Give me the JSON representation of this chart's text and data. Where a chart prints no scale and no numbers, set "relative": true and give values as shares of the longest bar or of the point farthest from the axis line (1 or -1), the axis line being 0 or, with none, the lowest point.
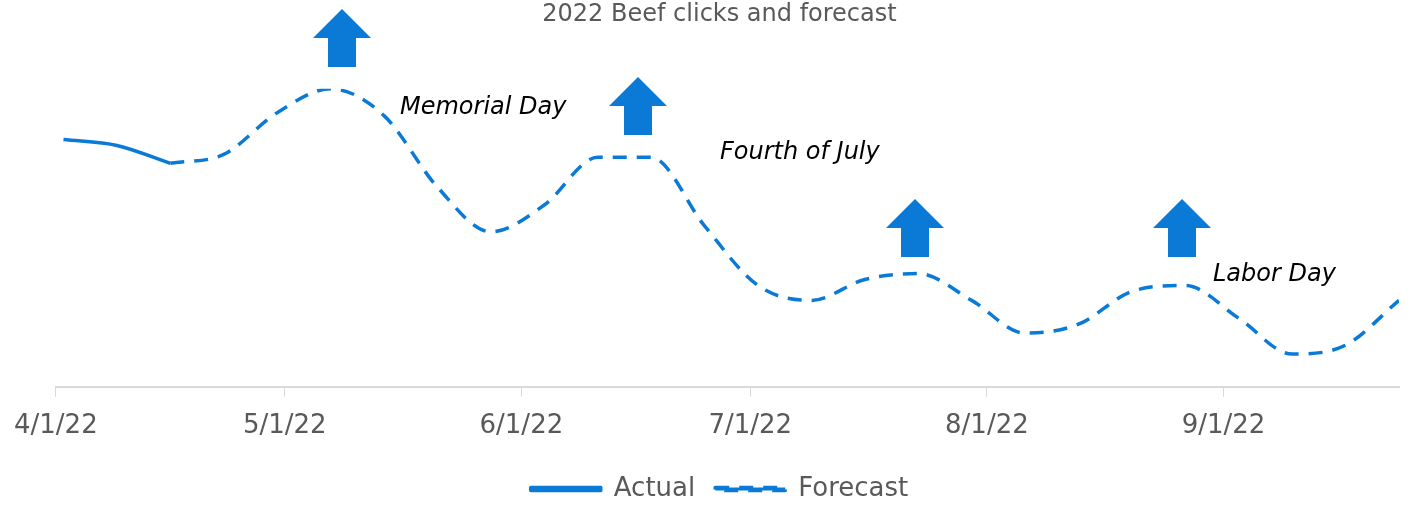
{
  "chart_data": {
    "type": "line",
    "title": "2022 Beef clicks and forecast",
    "relative": true,
    "x": [
      "2022-04-02",
      "2022-04-09",
      "2022-04-16",
      "2022-04-23",
      "2022-04-30",
      "2022-05-07",
      "2022-05-14",
      "2022-05-21",
      "2022-05-28",
      "2022-06-04",
      "2022-06-11",
      "2022-06-18",
      "2022-06-25",
      "2022-07-02",
      "2022-07-09",
      "2022-07-16",
      "2022-07-23",
      "2022-07-30",
      "2022-08-06",
      "2022-08-13",
      "2022-08-20",
      "2022-08-27",
      "2022-09-03",
      "2022-09-10",
      "2022-09-17",
      "2022-09-24"
    ],
    "series": [
      {
        "name": "Actual",
        "color": "#0a7ad6",
        "line_style": "solid",
        "values": [
          0.83,
          0.81,
          0.75,
          null,
          null,
          null,
          null,
          null,
          null,
          null,
          null,
          null,
          null,
          null,
          null,
          null,
          null,
          null,
          null,
          null,
          null,
          null,
          null,
          null,
          null,
          null
        ]
      },
      {
        "name": "Forecast",
        "color": "#0a7ad6",
        "line_style": "dashed",
        "values": [
          null,
          null,
          0.75,
          0.78,
          0.92,
          1.0,
          0.91,
          0.67,
          0.52,
          0.61,
          0.77,
          0.77,
          0.54,
          0.34,
          0.29,
          0.36,
          0.38,
          0.29,
          0.18,
          0.21,
          0.32,
          0.34,
          0.23,
          0.11,
          0.14,
          0.29
        ]
      }
    ],
    "xlim": [
      "2022-04-01",
      "2022-09-24"
    ],
    "xticks": [
      {
        "value": "2022-04-01",
        "label": "4/1/22"
      },
      {
        "value": "2022-05-01",
        "label": "5/1/22"
      },
      {
        "value": "2022-06-01",
        "label": "6/1/22"
      },
      {
        "value": "2022-07-01",
        "label": "7/1/22"
      },
      {
        "value": "2022-08-01",
        "label": "8/1/22"
      },
      {
        "value": "2022-09-01",
        "label": "9/1/22"
      }
    ],
    "annotations": [
      "Memorial Day",
      "Fourth of July",
      "Labor Day"
    ],
    "legend": "bottom",
    "grid": false,
    "marker": "none"
  }
}
